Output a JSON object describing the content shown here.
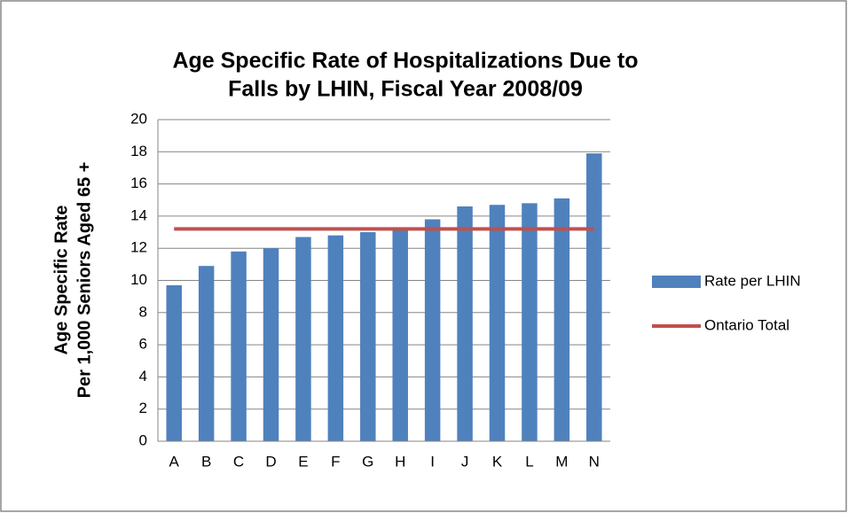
{
  "chart_data": {
    "type": "bar",
    "title": [
      "Age Specific Rate of Hospitalizations Due to",
      "Falls by LHIN, Fiscal Year 2008/09"
    ],
    "ylabel": [
      "Age Specific Rate",
      "Per 1,000 Seniors Aged 65 +"
    ],
    "categories": [
      "A",
      "B",
      "C",
      "D",
      "E",
      "F",
      "G",
      "H",
      "I",
      "J",
      "K",
      "L",
      "M",
      "N"
    ],
    "series": [
      {
        "name": "Rate per LHIN",
        "type": "bar",
        "color": "#4f81bd",
        "values": [
          9.7,
          10.9,
          11.8,
          12.0,
          12.7,
          12.8,
          13.0,
          13.2,
          13.8,
          14.6,
          14.7,
          14.8,
          15.1,
          17.9
        ]
      },
      {
        "name": "Ontario Total",
        "type": "line",
        "color": "#c0504d",
        "values": [
          13.2,
          13.2,
          13.2,
          13.2,
          13.2,
          13.2,
          13.2,
          13.2,
          13.2,
          13.2,
          13.2,
          13.2,
          13.2,
          13.2
        ]
      }
    ],
    "ylim": [
      0,
      20
    ],
    "yticks": [
      0,
      2,
      4,
      6,
      8,
      10,
      12,
      14,
      16,
      18,
      20
    ],
    "grid": true,
    "legend": "right"
  }
}
